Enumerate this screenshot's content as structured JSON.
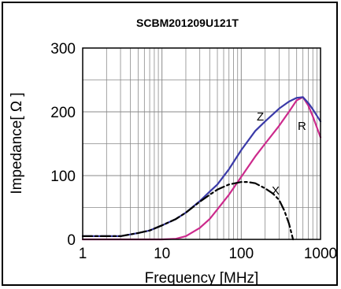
{
  "chart_data": {
    "type": "line",
    "title": "SCBM201209U121T",
    "xlabel": "Frequency [MHz]",
    "ylabel": "Impedance[ Ω ]",
    "x_scale": "log",
    "xlim": [
      1,
      1000
    ],
    "ylim": [
      0,
      300
    ],
    "x_ticks": [
      "1",
      "10",
      "100",
      "1000"
    ],
    "y_ticks": [
      "0",
      "100",
      "200",
      "300"
    ],
    "grid": true,
    "colors": {
      "Z": "#3a3aa8",
      "R": "#cc2a8c",
      "X": "#000000"
    },
    "series": [
      {
        "name": "Z",
        "style": "solid",
        "x": [
          1,
          3,
          5,
          7,
          10,
          15,
          20,
          30,
          40,
          50,
          70,
          100,
          150,
          200,
          300,
          400,
          500,
          600,
          700,
          800,
          1000
        ],
        "y": [
          5,
          5,
          10,
          14,
          22,
          32,
          42,
          60,
          75,
          86,
          110,
          140,
          170,
          185,
          205,
          216,
          222,
          223,
          214,
          204,
          185
        ]
      },
      {
        "name": "R",
        "style": "solid",
        "x": [
          1,
          5,
          10,
          15,
          20,
          30,
          40,
          50,
          70,
          100,
          150,
          200,
          300,
          400,
          500,
          600,
          700,
          800,
          1000
        ],
        "y": [
          0,
          0,
          0,
          1,
          5,
          18,
          32,
          47,
          70,
          98,
          130,
          150,
          178,
          200,
          218,
          223,
          210,
          193,
          160
        ]
      },
      {
        "name": "X",
        "style": "dashdot",
        "x": [
          1,
          3,
          5,
          7,
          10,
          15,
          20,
          30,
          40,
          50,
          70,
          100,
          120,
          150,
          200,
          250,
          300,
          350,
          400,
          450
        ],
        "y": [
          5,
          5,
          10,
          14,
          22,
          32,
          42,
          59,
          70,
          78,
          86,
          90,
          90,
          88,
          80,
          72,
          62,
          45,
          25,
          0
        ]
      }
    ]
  }
}
